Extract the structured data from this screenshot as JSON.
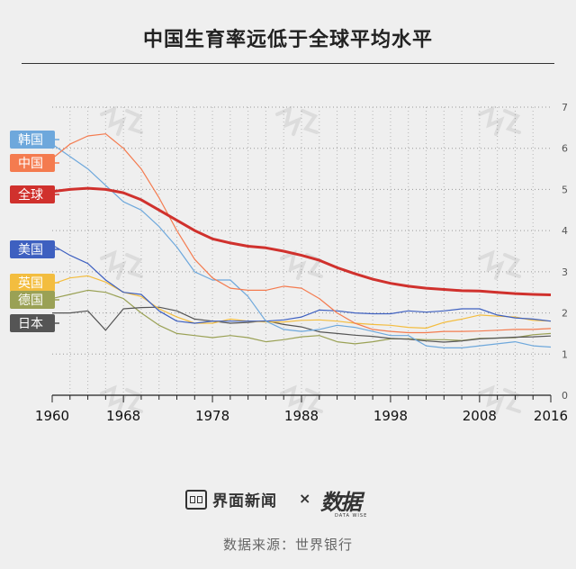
{
  "title": "中国生育率远低于全球平均水平",
  "source": "数据来源：世界银行",
  "brand": {
    "left": "界面新闻",
    "times": "×",
    "right": "数据",
    "right_sub": "DATA WISE"
  },
  "chart_data": {
    "type": "line",
    "xlim": [
      1960,
      2016
    ],
    "ylim": [
      0,
      7
    ],
    "x_ticks": [
      1960,
      1968,
      1978,
      1988,
      1998,
      2008,
      2016
    ],
    "y_ticks": [
      0,
      1,
      2,
      3,
      4,
      5,
      6,
      7
    ],
    "grid": true,
    "years": [
      1960,
      1962,
      1964,
      1966,
      1968,
      1970,
      1972,
      1974,
      1976,
      1978,
      1980,
      1982,
      1984,
      1986,
      1988,
      1990,
      1992,
      1994,
      1996,
      1998,
      2000,
      2002,
      2004,
      2006,
      2008,
      2010,
      2012,
      2014,
      2016
    ],
    "series": [
      {
        "name": "韩国",
        "color": "#6ea8dc",
        "width": 1.2,
        "values": [
          6.1,
          5.8,
          5.5,
          5.1,
          4.7,
          4.5,
          4.1,
          3.6,
          3.0,
          2.8,
          2.8,
          2.4,
          1.8,
          1.6,
          1.55,
          1.6,
          1.7,
          1.65,
          1.55,
          1.45,
          1.45,
          1.2,
          1.15,
          1.15,
          1.2,
          1.25,
          1.3,
          1.2,
          1.17
        ]
      },
      {
        "name": "中国",
        "color": "#f47b4f",
        "width": 1.2,
        "values": [
          5.75,
          6.1,
          6.3,
          6.35,
          6.0,
          5.5,
          4.8,
          4.0,
          3.3,
          2.85,
          2.6,
          2.55,
          2.55,
          2.65,
          2.6,
          2.35,
          2.0,
          1.75,
          1.6,
          1.55,
          1.52,
          1.52,
          1.55,
          1.55,
          1.56,
          1.58,
          1.6,
          1.6,
          1.62
        ]
      },
      {
        "name": "全球",
        "color": "#d0312d",
        "width": 3,
        "values": [
          4.95,
          5.0,
          5.03,
          5.0,
          4.92,
          4.75,
          4.5,
          4.25,
          4.0,
          3.8,
          3.7,
          3.62,
          3.58,
          3.5,
          3.4,
          3.28,
          3.1,
          2.95,
          2.82,
          2.72,
          2.65,
          2.6,
          2.57,
          2.54,
          2.53,
          2.5,
          2.47,
          2.45,
          2.44
        ]
      },
      {
        "name": "美国",
        "color": "#3e60c0",
        "width": 1.2,
        "values": [
          3.65,
          3.4,
          3.2,
          2.8,
          2.5,
          2.45,
          2.05,
          1.8,
          1.75,
          1.8,
          1.8,
          1.8,
          1.8,
          1.83,
          1.9,
          2.07,
          2.05,
          2.0,
          1.98,
          1.98,
          2.05,
          2.02,
          2.05,
          2.1,
          2.1,
          1.95,
          1.88,
          1.85,
          1.8
        ]
      },
      {
        "name": "英国",
        "color": "#f3bd3f",
        "width": 1.2,
        "values": [
          2.7,
          2.85,
          2.9,
          2.75,
          2.5,
          2.4,
          2.1,
          1.9,
          1.75,
          1.75,
          1.85,
          1.8,
          1.78,
          1.78,
          1.82,
          1.83,
          1.8,
          1.75,
          1.72,
          1.7,
          1.65,
          1.63,
          1.77,
          1.85,
          1.95,
          1.92,
          1.9,
          1.82,
          1.8
        ]
      },
      {
        "name": "德国",
        "color": "#9aa155",
        "width": 1.2,
        "values": [
          2.35,
          2.45,
          2.55,
          2.5,
          2.35,
          2.0,
          1.7,
          1.5,
          1.45,
          1.4,
          1.45,
          1.4,
          1.3,
          1.35,
          1.42,
          1.45,
          1.3,
          1.25,
          1.3,
          1.37,
          1.37,
          1.35,
          1.35,
          1.33,
          1.38,
          1.39,
          1.4,
          1.47,
          1.5
        ]
      },
      {
        "name": "日本",
        "color": "#555555",
        "width": 1.2,
        "values": [
          2.0,
          2.0,
          2.05,
          1.58,
          2.1,
          2.13,
          2.14,
          2.05,
          1.85,
          1.8,
          1.75,
          1.77,
          1.81,
          1.72,
          1.66,
          1.54,
          1.5,
          1.46,
          1.43,
          1.38,
          1.36,
          1.32,
          1.29,
          1.32,
          1.37,
          1.39,
          1.41,
          1.42,
          1.44
        ]
      }
    ]
  }
}
